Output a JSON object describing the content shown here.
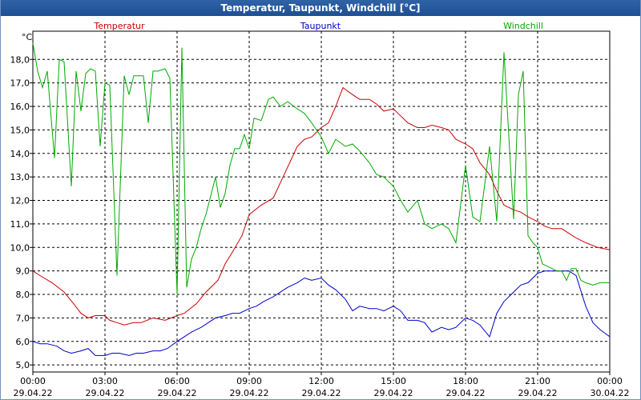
{
  "window": {
    "title": "Temperatur, Taupunkt, Windchill [°C]"
  },
  "chart_data": {
    "type": "line",
    "title": "Temperatur, Taupunkt, Windchill [°C]",
    "ylabel": "°C",
    "xlabel": "",
    "ylim": [
      4.7,
      19.2
    ],
    "xlim": [
      0,
      24
    ],
    "grid": true,
    "y_ticks": [
      "5,0",
      "6,0",
      "7,0",
      "8,0",
      "9,0",
      "10,0",
      "11,0",
      "12,0",
      "13,0",
      "14,0",
      "15,0",
      "16,0",
      "17,0",
      "18,0"
    ],
    "x_ticks": [
      {
        "time": "00:00",
        "date": "29.04.22"
      },
      {
        "time": "03:00",
        "date": "29.04.22"
      },
      {
        "time": "06:00",
        "date": "29.04.22"
      },
      {
        "time": "09:00",
        "date": "29.04.22"
      },
      {
        "time": "12:00",
        "date": "29.04.22"
      },
      {
        "time": "15:00",
        "date": "29.04.22"
      },
      {
        "time": "18:00",
        "date": "29.04.22"
      },
      {
        "time": "21:00",
        "date": "29.04.22"
      },
      {
        "time": "00:00",
        "date": "30.04.22"
      }
    ],
    "series": [
      {
        "name": "Temperatur",
        "color": "#cc0000",
        "x": [
          0,
          0.3,
          0.8,
          1.3,
          1.7,
          2.0,
          2.3,
          2.6,
          3.0,
          3.2,
          3.5,
          3.8,
          4.2,
          4.5,
          5.0,
          5.5,
          6.0,
          6.3,
          6.8,
          7.2,
          7.7,
          8.0,
          8.3,
          8.7,
          9.0,
          9.5,
          10.0,
          10.5,
          11.0,
          11.3,
          11.6,
          12.0,
          12.3,
          12.6,
          12.9,
          13.3,
          13.6,
          14.0,
          14.3,
          14.6,
          15.0,
          15.3,
          15.6,
          16.0,
          16.3,
          16.6,
          17.0,
          17.3,
          17.6,
          18.0,
          18.3,
          18.6,
          19.0,
          19.3,
          19.6,
          20.0,
          20.3,
          20.6,
          21.0,
          21.3,
          21.6,
          22.0,
          22.3,
          22.6,
          23.0,
          23.5,
          24.0
        ],
        "values": [
          9.0,
          8.8,
          8.5,
          8.1,
          7.6,
          7.2,
          7.0,
          7.1,
          7.1,
          6.9,
          6.8,
          6.7,
          6.8,
          6.8,
          7.0,
          6.9,
          7.1,
          7.2,
          7.6,
          8.1,
          8.6,
          9.3,
          9.8,
          10.5,
          11.4,
          11.8,
          12.1,
          13.2,
          14.3,
          14.6,
          14.7,
          15.1,
          15.3,
          16.0,
          16.8,
          16.5,
          16.3,
          16.3,
          16.1,
          15.8,
          15.9,
          15.6,
          15.3,
          15.1,
          15.1,
          15.2,
          15.1,
          15.0,
          14.6,
          14.4,
          14.2,
          13.6,
          13.1,
          12.4,
          11.8,
          11.6,
          11.5,
          11.3,
          11.1,
          10.9,
          10.8,
          10.8,
          10.6,
          10.4,
          10.2,
          10.0,
          9.9
        ]
      },
      {
        "name": "Taupunkt",
        "color": "#0000cc",
        "x": [
          0,
          0.3,
          0.6,
          1.0,
          1.3,
          1.6,
          2.0,
          2.3,
          2.6,
          3.0,
          3.3,
          3.6,
          4.0,
          4.3,
          4.6,
          5.0,
          5.3,
          5.6,
          6.0,
          6.3,
          6.6,
          7.0,
          7.3,
          7.6,
          8.0,
          8.3,
          8.6,
          9.0,
          9.3,
          9.6,
          10.0,
          10.3,
          10.6,
          11.0,
          11.3,
          11.6,
          12.0,
          12.3,
          12.6,
          13.0,
          13.3,
          13.6,
          14.0,
          14.3,
          14.6,
          15.0,
          15.3,
          15.6,
          16.0,
          16.3,
          16.6,
          17.0,
          17.3,
          17.6,
          18.0,
          18.3,
          18.6,
          19.0,
          19.3,
          19.6,
          20.0,
          20.3,
          20.6,
          21.0,
          21.3,
          21.6,
          22.0,
          22.3,
          22.6,
          23.0,
          23.3,
          23.6,
          24.0
        ],
        "values": [
          6.0,
          5.9,
          5.9,
          5.8,
          5.6,
          5.5,
          5.6,
          5.7,
          5.4,
          5.4,
          5.5,
          5.5,
          5.4,
          5.5,
          5.5,
          5.6,
          5.6,
          5.7,
          6.0,
          6.2,
          6.4,
          6.6,
          6.8,
          7.0,
          7.1,
          7.2,
          7.2,
          7.4,
          7.5,
          7.7,
          7.9,
          8.1,
          8.3,
          8.5,
          8.7,
          8.6,
          8.7,
          8.4,
          8.2,
          7.8,
          7.3,
          7.5,
          7.4,
          7.4,
          7.3,
          7.5,
          7.3,
          6.9,
          6.9,
          6.8,
          6.4,
          6.6,
          6.5,
          6.6,
          7.0,
          6.9,
          6.7,
          6.2,
          7.2,
          7.7,
          8.1,
          8.4,
          8.5,
          8.9,
          9.0,
          9.0,
          9.0,
          9.0,
          8.8,
          7.5,
          6.8,
          6.5,
          6.2
        ]
      },
      {
        "name": "Windchill",
        "color": "#00aa00",
        "x": [
          0,
          0.2,
          0.4,
          0.6,
          0.9,
          1.1,
          1.3,
          1.6,
          1.8,
          2.0,
          2.2,
          2.4,
          2.6,
          2.8,
          3.0,
          3.2,
          3.5,
          3.8,
          4.0,
          4.2,
          4.4,
          4.6,
          4.8,
          5.0,
          5.2,
          5.5,
          5.7,
          6.0,
          6.2,
          6.4,
          6.6,
          6.8,
          7.0,
          7.2,
          7.4,
          7.6,
          7.8,
          8.0,
          8.2,
          8.4,
          8.6,
          8.8,
          9.0,
          9.2,
          9.5,
          9.8,
          10.0,
          10.3,
          10.6,
          11.0,
          11.3,
          11.6,
          12.0,
          12.3,
          12.6,
          13.0,
          13.3,
          13.6,
          14.0,
          14.3,
          14.6,
          15.0,
          15.3,
          15.6,
          16.0,
          16.3,
          16.6,
          17.0,
          17.3,
          17.6,
          18.0,
          18.3,
          18.6,
          19.0,
          19.3,
          19.6,
          20.0,
          20.2,
          20.4,
          20.6,
          20.8,
          21.0,
          21.2,
          21.4,
          21.6,
          21.8,
          22.0,
          22.2,
          22.4,
          22.6,
          22.8,
          23.0,
          23.3,
          23.6,
          24.0
        ],
        "values": [
          18.7,
          17.5,
          16.8,
          17.5,
          13.8,
          18.0,
          17.9,
          12.6,
          17.5,
          15.8,
          17.4,
          17.6,
          17.5,
          14.3,
          17.0,
          16.9,
          8.8,
          17.3,
          16.5,
          17.3,
          17.3,
          17.3,
          15.3,
          17.5,
          17.5,
          17.6,
          17.2,
          8.0,
          18.5,
          8.3,
          9.5,
          10.0,
          10.8,
          11.4,
          12.2,
          13.0,
          11.7,
          12.3,
          13.5,
          14.2,
          14.2,
          14.8,
          14.2,
          15.5,
          15.4,
          16.3,
          16.4,
          16.0,
          16.2,
          15.9,
          15.7,
          15.3,
          14.7,
          14.0,
          14.6,
          14.3,
          14.4,
          14.1,
          13.6,
          13.1,
          13.0,
          12.6,
          12.0,
          11.5,
          12.0,
          11.0,
          10.8,
          11.0,
          10.8,
          10.2,
          13.5,
          11.3,
          11.1,
          14.3,
          11.1,
          18.3,
          11.2,
          16.5,
          17.5,
          10.5,
          10.2,
          10.0,
          9.3,
          9.2,
          9.1,
          9.0,
          9.0,
          8.6,
          9.1,
          9.1,
          8.6,
          8.5,
          8.4,
          8.5,
          8.5
        ]
      }
    ]
  }
}
